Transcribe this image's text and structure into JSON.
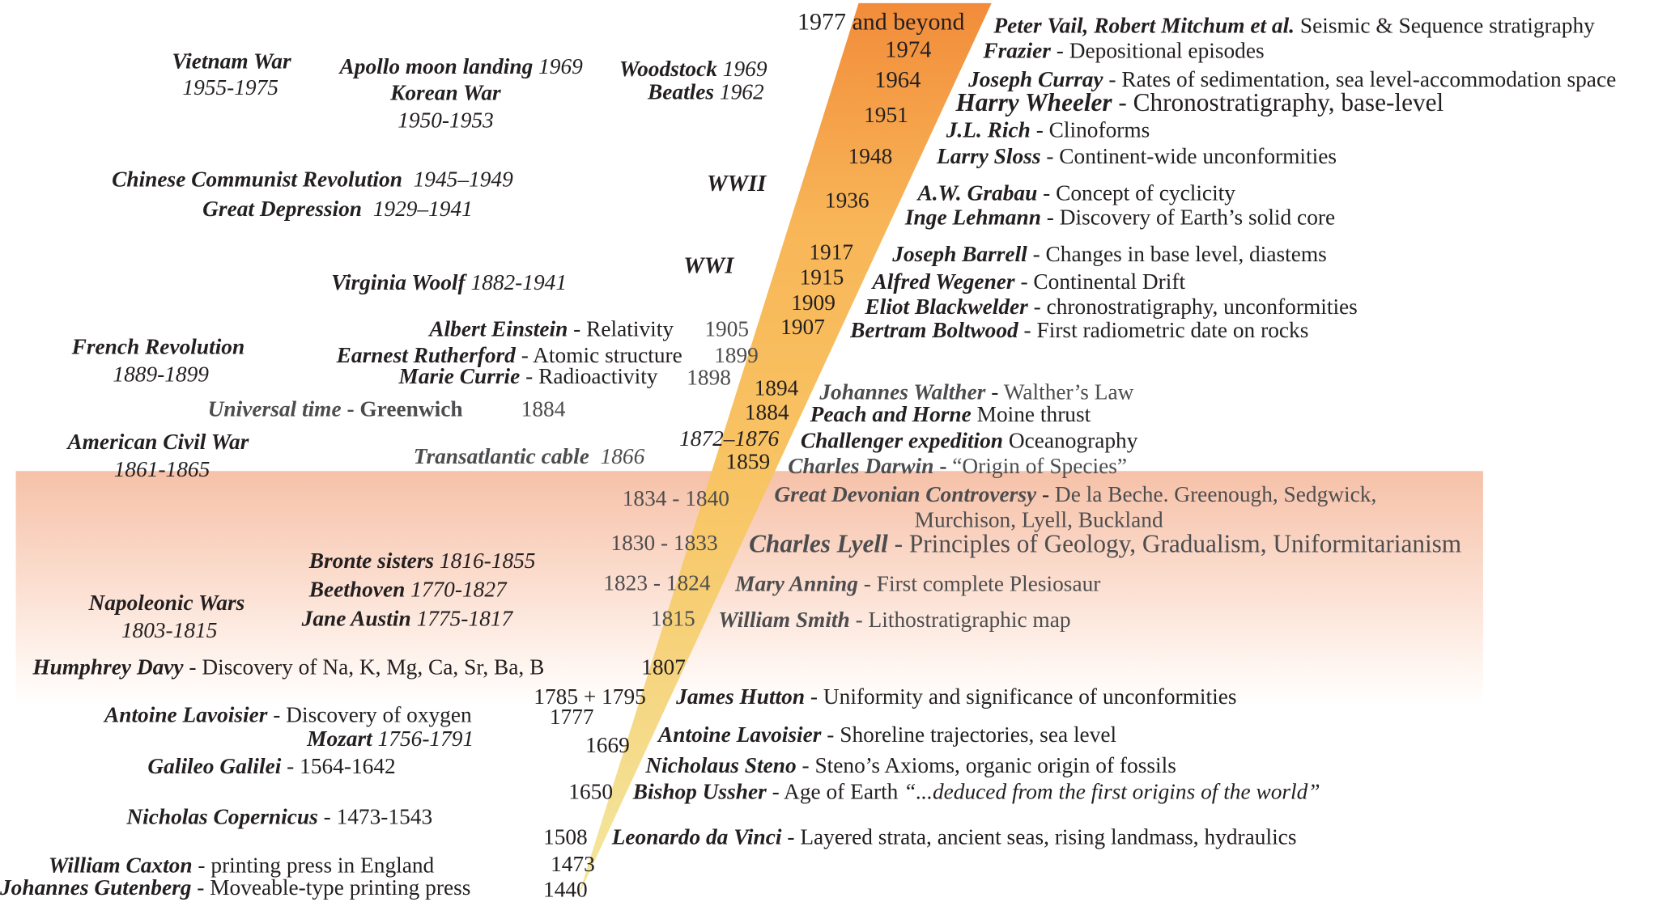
{
  "wedge": {
    "color_tip": "#f3e8a0",
    "color_mid": "#f8b658",
    "color_top": "#f28c3a"
  },
  "band": {
    "color": "#f7c4ab"
  },
  "years_right": [
    "1977 and beyond",
    "1974",
    "1964",
    "1951",
    "1948",
    "1936",
    "1917",
    "1915",
    "1909",
    "1907",
    "1894",
    "1884",
    "1872–1876",
    "1859",
    "1834 - 1840",
    "1830 - 1833",
    "1823 - 1824",
    "1815",
    "1807",
    "1785 + 1795",
    "1669",
    "1650",
    "1508",
    "1473",
    "1440"
  ],
  "years_left": [
    "1905",
    "1899",
    "1898",
    "1884",
    "1777"
  ],
  "geology": [
    {
      "name": "Peter Vail, Robert Mitchum et al.",
      "sep": "",
      "desc": "Seismic & Sequence stratigraphy"
    },
    {
      "name": "Frazier",
      "sep": "-",
      "desc": "Depositional episodes"
    },
    {
      "name": "Joseph Curray",
      "sep": "-",
      "desc": "Rates of sedimentation, sea level-accommodation space"
    },
    {
      "name": "Harry Wheeler",
      "sep": "-",
      "desc": "Chronostratigraphy, base-level"
    },
    {
      "name": "J.L. Rich",
      "sep": "-",
      "desc": "Clinoforms"
    },
    {
      "name": "Larry Sloss",
      "sep": "-",
      "desc": "Continent-wide unconformities"
    },
    {
      "name": "A.W. Grabau",
      "sep": "-",
      "desc": "Concept of cyclicity"
    },
    {
      "name": "Inge Lehmann",
      "sep": "-",
      "desc": "Discovery of Earth’s solid core"
    },
    {
      "name": "Joseph Barrell",
      "sep": "-",
      "desc": "Changes in base level, diastems"
    },
    {
      "name": "Alfred Wegener",
      "sep": "-",
      "desc": "Continental Drift"
    },
    {
      "name": "Eliot Blackwelder",
      "sep": "-",
      "desc": "chronostratigraphy, unconformities"
    },
    {
      "name": "Bertram Boltwood",
      "sep": "-",
      "desc": "First radiometric date on rocks"
    },
    {
      "name": "Johannes Walther",
      "sep": "-",
      "desc": "Walther’s Law"
    },
    {
      "name": "Peach and Horne",
      "sep": "",
      "desc": "Moine thrust"
    },
    {
      "name": "Challenger expedition",
      "sep": "",
      "desc": "Oceanography"
    },
    {
      "name": "Charles Darwin",
      "sep": "-",
      "desc": "“Origin of Species”"
    },
    {
      "name": "Great Devonian Controversy",
      "sep": "-",
      "desc": "De la Beche. Greenough, Sedgwick,",
      "desc2": "Murchison, Lyell, Buckland"
    },
    {
      "name": "Charles Lyell",
      "sep": "-",
      "desc": "Principles of Geology, Gradualism, Uniformitarianism"
    },
    {
      "name": "Mary Anning",
      "sep": "-",
      "desc": "First complete Plesiosaur"
    },
    {
      "name": "William Smith",
      "sep": "-",
      "desc": "Lithostratigraphic map"
    },
    {
      "name": "James Hutton",
      "sep": "-",
      "desc": "Uniformity and significance of unconformities"
    },
    {
      "name": "Antoine Lavoisier",
      "sep": "-",
      "desc": "Shoreline trajectories, sea level"
    },
    {
      "name": "Nicholaus Steno",
      "sep": "-",
      "desc": "Steno’s Axioms, organic origin of fossils"
    },
    {
      "name": "Bishop Ussher",
      "sep": "-",
      "desc": "Age of Earth",
      "quote": "“...deduced from the first origins of the world”"
    },
    {
      "name": "Leonardo da Vinci",
      "sep": "-",
      "desc": "Layered strata, ancient seas, rising landmass, hydraulics"
    }
  ],
  "history": [
    {
      "name": "Vietnam War",
      "dates": "1955-1975"
    },
    {
      "name": "Apollo moon landing",
      "dates": "1969"
    },
    {
      "name": "Korean War",
      "dates": "1950-1953"
    },
    {
      "name": "Woodstock",
      "dates": "1969"
    },
    {
      "name": "Beatles",
      "dates": "1962"
    },
    {
      "name": "Chinese Communist Revolution",
      "dates": "1945–1949"
    },
    {
      "name": "Great Depression",
      "dates": "1929–1941"
    },
    {
      "name": "WWII"
    },
    {
      "name": "WWI"
    },
    {
      "name": "Virginia Woolf",
      "dates": "1882-1941"
    },
    {
      "name": "French Revolution",
      "dates": "1889-1899"
    },
    {
      "name": "American Civil War",
      "dates": "1861-1865"
    },
    {
      "name": "Transatlantic cable",
      "dates": "1866"
    },
    {
      "name": "Bronte sisters",
      "dates": "1816-1855"
    },
    {
      "name": "Beethoven",
      "dates": "1770-1827"
    },
    {
      "name": "Jane Austin",
      "dates": "1775-1817"
    },
    {
      "name": "Napoleonic Wars",
      "dates": "1803-1815"
    },
    {
      "name": "Mozart",
      "dates": "1756-1791"
    }
  ],
  "science": [
    {
      "name": "Albert Einstein",
      "sep": "-",
      "desc": "Relativity"
    },
    {
      "name": "Earnest Rutherford",
      "sep": "-",
      "desc": "Atomic structure"
    },
    {
      "name": "Marie Currie",
      "sep": "-",
      "desc": "Radioactivity"
    },
    {
      "name": "Universal time",
      "sep": "-",
      "desc": "Greenwich"
    },
    {
      "name": "Humphrey Davy",
      "sep": "-",
      "desc": "Discovery of Na, K, Mg, Ca, Sr, Ba, B"
    },
    {
      "name": "Antoine Lavoisier",
      "sep": "-",
      "desc": "Discovery of oxygen"
    },
    {
      "name": "Galileo Galilei",
      "sep": "-",
      "desc": "1564-1642"
    },
    {
      "name": "Nicholas Copernicus",
      "sep": "-",
      "desc": "1473-1543"
    },
    {
      "name": "William Caxton",
      "sep": "-",
      "desc": "printing press in England"
    },
    {
      "name": "Johannes Gutenberg",
      "sep": "-",
      "desc": "Moveable-type printing press"
    }
  ]
}
